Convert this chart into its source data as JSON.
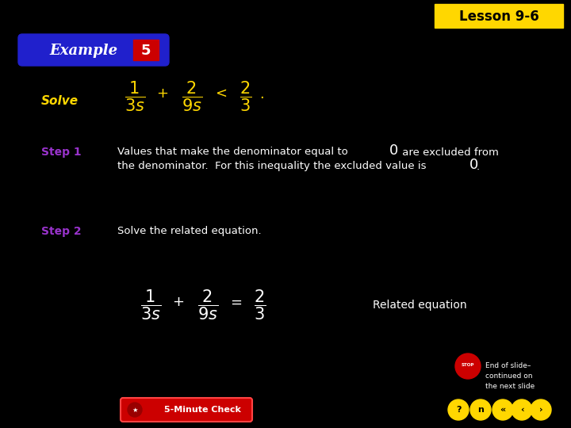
{
  "bg_color": "#000000",
  "lesson_box_color": "#FFD700",
  "lesson_text": "Lesson 9-6",
  "lesson_text_color": "#000000",
  "example_bg_color": "#2020CC",
  "example_text_color": "#FFFFFF",
  "example_number_bg": "#CC0000",
  "example_number_color": "#FFFFFF",
  "solve_label_color": "#FFD700",
  "solve_label": "Solve",
  "step1_label": "Step 1",
  "step1_color": "#9933CC",
  "step1_text_line1": "Values that make the denominator equal to",
  "step1_zero1": "0",
  "step1_after1": " are excluded from",
  "step1_text_line2": "the denominator.  For this inequality the excluded value is",
  "step1_zero2": "0",
  "step2_label": "Step 2",
  "step2_color": "#9933CC",
  "step2_text": "Solve the related equation.",
  "related_eq_text": "Related equation",
  "equation_color": "#FFFFFF",
  "end_slide_text": "End of slide–\ncontinued on\nthe next slide",
  "end_slide_color": "#FFFFFF",
  "nav_color": "#FFD700",
  "check_btn_color": "#CC0000",
  "fig_width": 7.2,
  "fig_height": 5.4,
  "dpi": 100
}
